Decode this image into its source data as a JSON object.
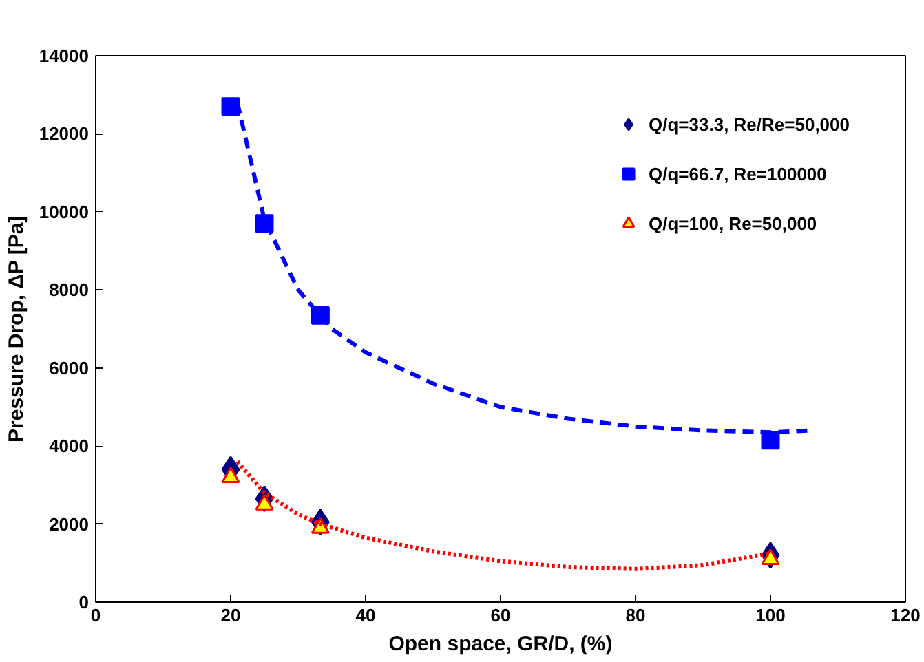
{
  "chart_data": {
    "type": "scatter",
    "xlabel": "Open space, GR/D, (%)",
    "ylabel": "Pressure Drop, ΔP [Pa]",
    "xlim": [
      0,
      120
    ],
    "xticks": [
      0,
      20,
      40,
      60,
      80,
      100,
      120
    ],
    "ylim": [
      0,
      14000
    ],
    "yticks": [
      0,
      2000,
      4000,
      6000,
      8000,
      10000,
      12000,
      14000
    ],
    "grid": false,
    "legend": "top right",
    "series": [
      {
        "name": "Q/q=33.3, Re/Re=50,000",
        "marker": "diamond",
        "color": "#000080",
        "x": [
          20,
          25,
          33.3,
          100
        ],
        "values": [
          3400,
          2650,
          2050,
          1200
        ]
      },
      {
        "name": "Q/q=66.7, Re=100000",
        "marker": "square",
        "color": "#0000ff",
        "x": [
          20,
          25,
          33.3,
          100
        ],
        "values": [
          12700,
          9700,
          7350,
          4150
        ]
      },
      {
        "name": "Q/q=100, Re=50,000",
        "marker": "triangle",
        "color": "#ffff00",
        "x": [
          20,
          25,
          33.3,
          100
        ],
        "values": [
          3200,
          2500,
          1900,
          1100
        ]
      },
      {
        "type": "line",
        "line_style": "dashed",
        "color": "#0000ff",
        "x": [
          21,
          25,
          30,
          35,
          40,
          50,
          60,
          70,
          80,
          90,
          100,
          106
        ],
        "values": [
          12800,
          9800,
          8000,
          7000,
          6400,
          5600,
          5000,
          4700,
          4500,
          4400,
          4350,
          4400
        ]
      },
      {
        "type": "line",
        "line_style": "dotted",
        "color": "#ff0000",
        "x": [
          21,
          25,
          30,
          33.3,
          40,
          50,
          60,
          70,
          80,
          90,
          100
        ],
        "values": [
          3600,
          2800,
          2250,
          2000,
          1650,
          1300,
          1050,
          900,
          850,
          950,
          1250
        ]
      }
    ]
  }
}
